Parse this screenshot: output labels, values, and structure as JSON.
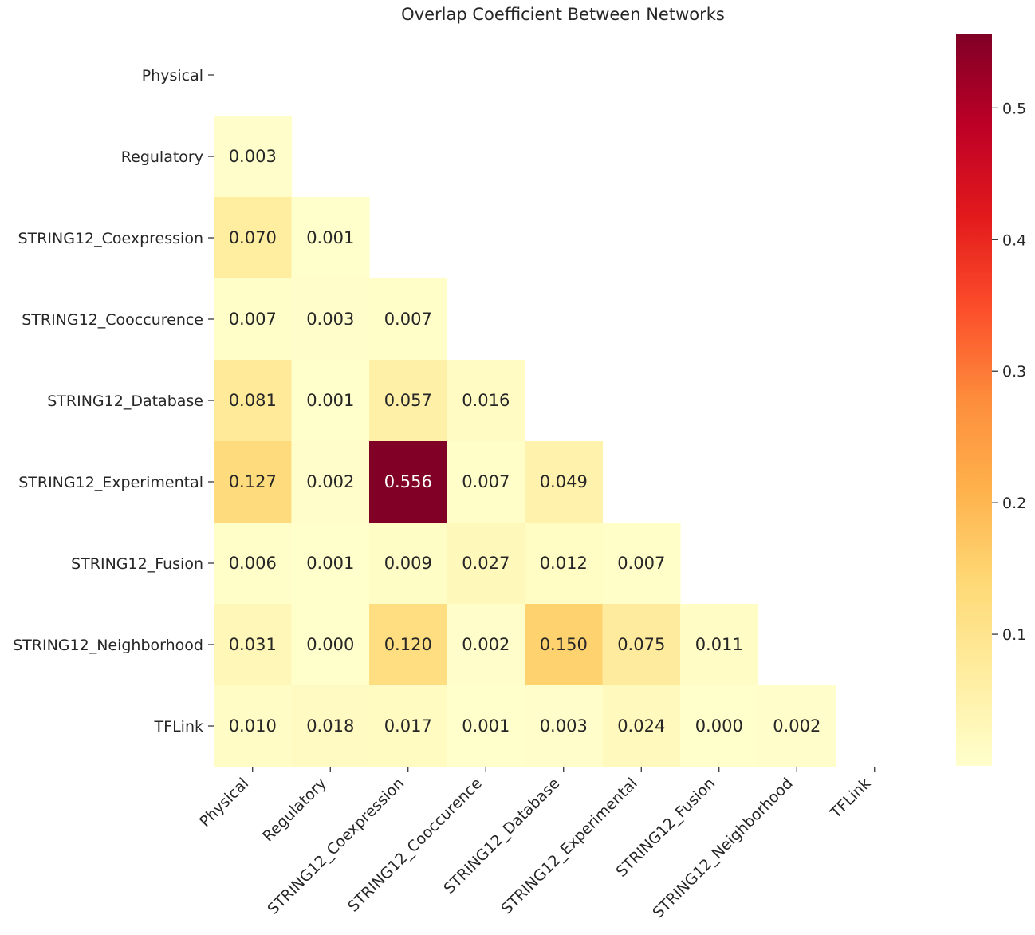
{
  "chart_data": {
    "type": "heatmap",
    "title": "Overlap Coefficient Between Networks",
    "xlabel": "",
    "ylabel": "",
    "rows": [
      "Physical",
      "Regulatory",
      "STRING12_Coexpression",
      "STRING12_Cooccurence",
      "STRING12_Database",
      "STRING12_Experimental",
      "STRING12_Fusion",
      "STRING12_Neighborhood",
      "TFLink"
    ],
    "columns": [
      "Physical",
      "Regulatory",
      "STRING12_Coexpression",
      "STRING12_Cooccurence",
      "STRING12_Database",
      "STRING12_Experimental",
      "STRING12_Fusion",
      "STRING12_Neighborhood",
      "TFLink"
    ],
    "mask": "upper-triangle-including-diagonal",
    "values": [
      [
        null,
        null,
        null,
        null,
        null,
        null,
        null,
        null,
        null
      ],
      [
        0.003,
        null,
        null,
        null,
        null,
        null,
        null,
        null,
        null
      ],
      [
        0.07,
        0.001,
        null,
        null,
        null,
        null,
        null,
        null,
        null
      ],
      [
        0.007,
        0.003,
        0.007,
        null,
        null,
        null,
        null,
        null,
        null
      ],
      [
        0.081,
        0.001,
        0.057,
        0.016,
        null,
        null,
        null,
        null,
        null
      ],
      [
        0.127,
        0.002,
        0.556,
        0.007,
        0.049,
        null,
        null,
        null,
        null
      ],
      [
        0.006,
        0.001,
        0.009,
        0.027,
        0.012,
        0.007,
        null,
        null,
        null
      ],
      [
        0.031,
        0.0,
        0.12,
        0.002,
        0.15,
        0.075,
        0.011,
        null,
        null
      ],
      [
        0.01,
        0.018,
        0.017,
        0.001,
        0.003,
        0.024,
        0.0,
        0.002,
        null
      ]
    ],
    "value_format": "0.000",
    "colormap": "YlOrRd",
    "colorbar": {
      "range": [
        0.0,
        0.556
      ],
      "ticks": [
        0.1,
        0.2,
        0.3,
        0.4,
        0.5
      ],
      "tick_labels": [
        "0.1",
        "0.2",
        "0.3",
        "0.4",
        "0.5"
      ],
      "placement": "right"
    },
    "colormap_stops": [
      "#ffffcc",
      "#ffeda0",
      "#fed976",
      "#feb24c",
      "#fd8d3c",
      "#fc4e2a",
      "#e31a1c",
      "#bd0026",
      "#800026"
    ]
  }
}
